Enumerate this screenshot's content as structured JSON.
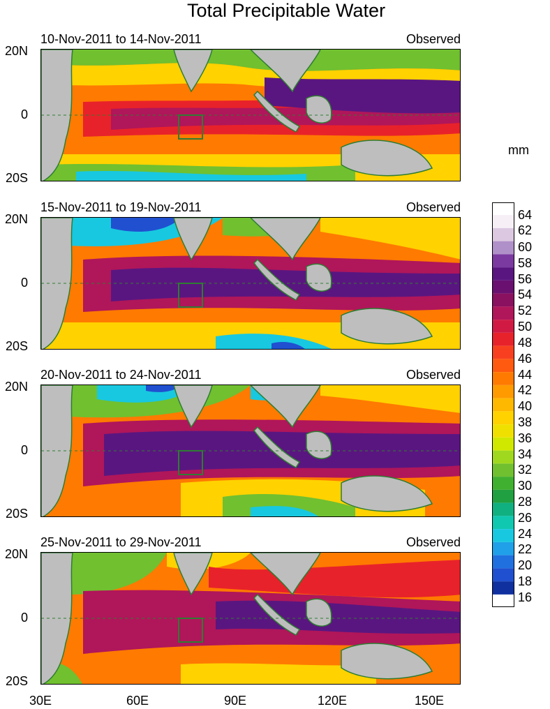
{
  "title": "Total Precipitable Water",
  "units_label": "mm",
  "panels": [
    {
      "period": "10-Nov-2011 to 14-Nov-2011",
      "status": "Observed"
    },
    {
      "period": "15-Nov-2011 to 19-Nov-2011",
      "status": "Observed"
    },
    {
      "period": "20-Nov-2011 to 24-Nov-2011",
      "status": "Observed"
    },
    {
      "period": "25-Nov-2011 to 29-Nov-2011",
      "status": "Observed"
    }
  ],
  "lat_labels": [
    "20N",
    "0",
    "20S"
  ],
  "lon_labels": [
    "30E",
    "60E",
    "90E",
    "120E",
    "150E"
  ],
  "colorbar_labels": [
    "64",
    "62",
    "60",
    "58",
    "56",
    "54",
    "52",
    "50",
    "48",
    "46",
    "44",
    "42",
    "40",
    "38",
    "36",
    "34",
    "32",
    "30",
    "28",
    "26",
    "24",
    "22",
    "20",
    "18",
    "16"
  ],
  "colors": {
    "land": "#bebebe",
    "coast": "#2e7d32",
    "very_high": "#5a1680",
    "high": "#b0165a",
    "mid_high": "#e8222a",
    "mid": "#ff7a00",
    "mid_low": "#ffd200",
    "low": "#70c030",
    "very_low": "#18c8e0",
    "lowest": "#2050d0"
  }
}
